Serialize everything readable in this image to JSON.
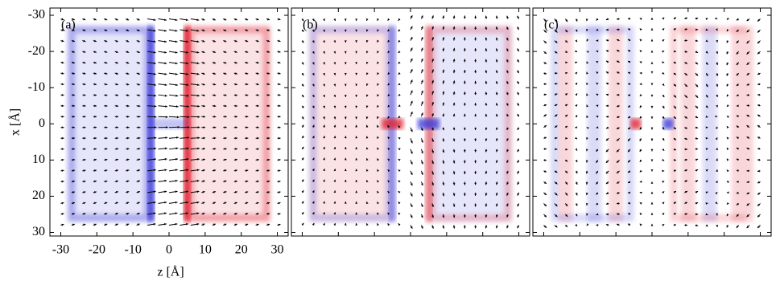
{
  "chart_data": [
    {
      "type": "vector-field",
      "label": "(a)",
      "xlabel": "z [Å]",
      "ylabel": "x [Å]",
      "xlim": [
        -33,
        33
      ],
      "ylim": [
        -32,
        31
      ],
      "xticks": [
        -30,
        -20,
        -10,
        0,
        10,
        20,
        30
      ],
      "yticks": [
        -30,
        -20,
        -10,
        0,
        10,
        20,
        30
      ]
    },
    {
      "type": "vector-field",
      "label": "(b)"
    },
    {
      "type": "vector-field",
      "label": "(c)"
    }
  ]
}
